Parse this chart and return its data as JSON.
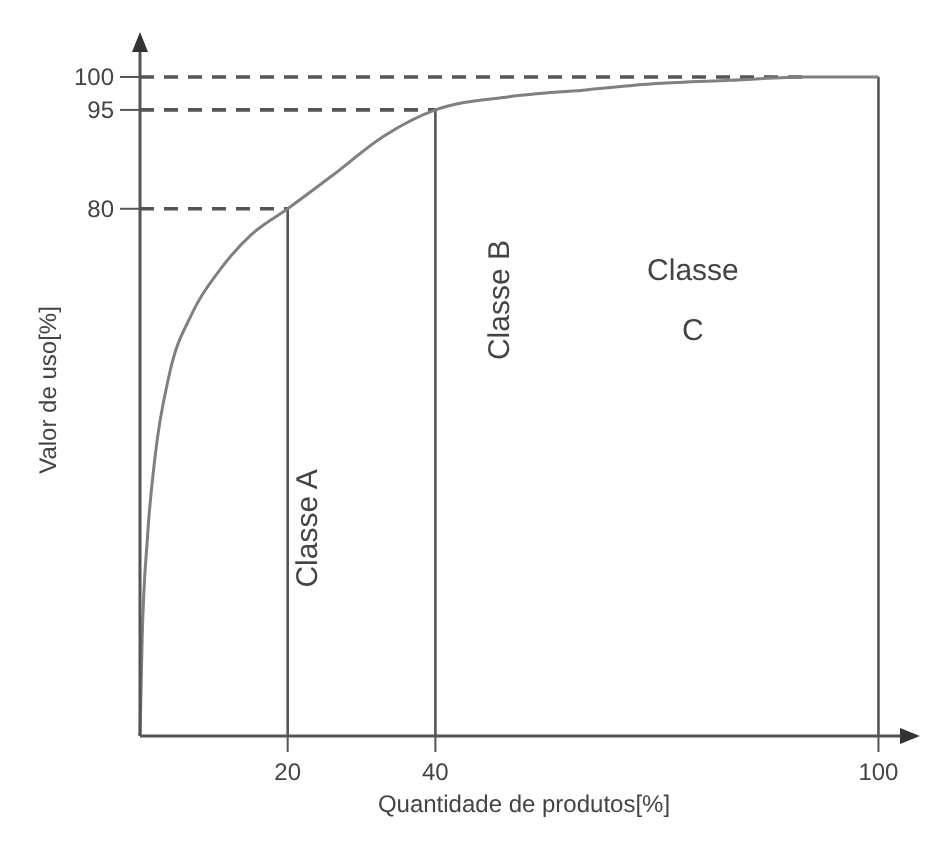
{
  "chart_data": {
    "type": "line",
    "xlabel": "Quantidade de produtos[%]",
    "ylabel": "Valor de uso[%]",
    "x": [
      0,
      0.3,
      1,
      2,
      4,
      7,
      11,
      15,
      20,
      26,
      33,
      40,
      50,
      60,
      70,
      80,
      90,
      100
    ],
    "series": [
      {
        "color": "#808080",
        "values": [
          0,
          15,
          30,
          42,
          55,
          64,
          71,
          76,
          80,
          85,
          91,
          95,
          97,
          98,
          99,
          99.5,
          100,
          100
        ]
      }
    ],
    "xlim": [
      0,
      104
    ],
    "ylim": [
      0,
      105
    ],
    "xticks": [
      20,
      40,
      100
    ],
    "yticks": [
      80,
      95,
      100
    ],
    "ref_lines": [
      {
        "axis": "x",
        "value": 20,
        "line_style": "solid"
      },
      {
        "axis": "x",
        "value": 40,
        "line_style": "solid"
      },
      {
        "axis": "x",
        "value": 100,
        "line_style": "solid"
      },
      {
        "axis": "y",
        "value": 80,
        "line_style": "dashed"
      },
      {
        "axis": "y",
        "value": 95,
        "line_style": "dashed"
      },
      {
        "axis": "y",
        "value": 100,
        "line_style": "dashed"
      }
    ],
    "annotations": [
      "Classe A",
      "Classe B",
      "Classe\nC"
    ],
    "grid": false,
    "marker": "none",
    "line_style": "solid"
  }
}
